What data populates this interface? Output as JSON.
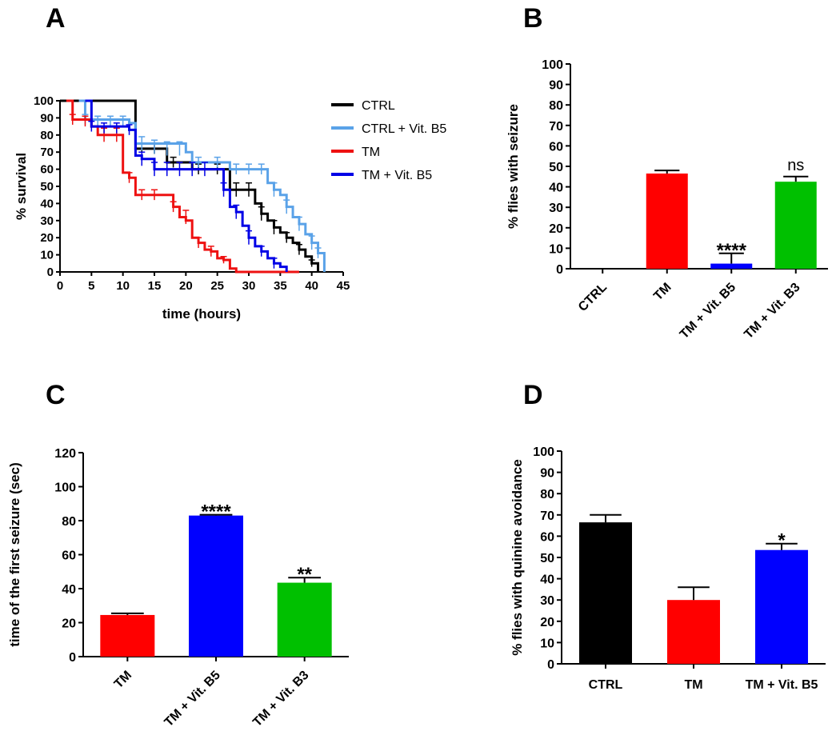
{
  "chart_data": [
    {
      "panel": "A",
      "type": "line",
      "title": "",
      "xlabel": "time (hours)",
      "ylabel": "% survival",
      "xlim": [
        0,
        45
      ],
      "ylim": [
        0,
        100
      ],
      "xticks": [
        0,
        5,
        10,
        15,
        20,
        25,
        30,
        35,
        40,
        45
      ],
      "yticks": [
        0,
        10,
        20,
        30,
        40,
        50,
        60,
        70,
        80,
        90,
        100
      ],
      "grid": false,
      "legend_position": "top-right",
      "series": [
        {
          "name": "CTRL",
          "color": "#000000",
          "points": [
            [
              0,
              100
            ],
            [
              11,
              100
            ],
            [
              12,
              72
            ],
            [
              16,
              72
            ],
            [
              17,
              64
            ],
            [
              20,
              64
            ],
            [
              21,
              60
            ],
            [
              26,
              60
            ],
            [
              27,
              48
            ],
            [
              30,
              48
            ],
            [
              31,
              40
            ],
            [
              32,
              34
            ],
            [
              33,
              30
            ],
            [
              34,
              26
            ],
            [
              35,
              23
            ],
            [
              36,
              20
            ],
            [
              37,
              17
            ],
            [
              38,
              13
            ],
            [
              39,
              9
            ],
            [
              40,
              5
            ],
            [
              41,
              0
            ]
          ],
          "errors": [
            [
              2,
              100,
              0
            ],
            [
              4,
              100,
              0
            ],
            [
              6,
              100,
              0
            ],
            [
              8,
              100,
              0
            ],
            [
              10,
              100,
              0
            ],
            [
              13,
              72,
              3
            ],
            [
              15,
              72,
              3
            ],
            [
              18,
              64,
              3
            ],
            [
              22,
              60,
              3
            ],
            [
              25,
              60,
              3
            ],
            [
              28,
              48,
              4
            ],
            [
              30,
              48,
              4
            ],
            [
              32,
              34,
              4
            ],
            [
              34,
              26,
              4
            ],
            [
              36,
              20,
              3
            ],
            [
              38,
              13,
              3
            ],
            [
              40,
              5,
              2
            ]
          ]
        },
        {
          "name": "CTRL + Vit. B5",
          "color": "#5aa2e8",
          "points": [
            [
              3,
              100
            ],
            [
              4,
              89
            ],
            [
              11,
              87
            ],
            [
              12,
              75
            ],
            [
              20,
              70
            ],
            [
              21,
              64
            ],
            [
              26,
              64
            ],
            [
              27,
              60
            ],
            [
              32,
              60
            ],
            [
              33,
              52
            ],
            [
              34,
              48
            ],
            [
              35,
              45
            ],
            [
              36,
              38
            ],
            [
              37,
              32
            ],
            [
              38,
              28
            ],
            [
              39,
              22
            ],
            [
              40,
              17
            ],
            [
              41,
              11
            ],
            [
              42,
              0
            ]
          ],
          "errors": [
            [
              4,
              89,
              3
            ],
            [
              6,
              88,
              3
            ],
            [
              8,
              88,
              3
            ],
            [
              10,
              88,
              3
            ],
            [
              13,
              75,
              4
            ],
            [
              15,
              73,
              4
            ],
            [
              17,
              72,
              4
            ],
            [
              19,
              72,
              4
            ],
            [
              22,
              64,
              3
            ],
            [
              25,
              64,
              3
            ],
            [
              28,
              60,
              3
            ],
            [
              30,
              60,
              3
            ],
            [
              32,
              60,
              3
            ],
            [
              34,
              48,
              4
            ],
            [
              36,
              38,
              4
            ],
            [
              38,
              28,
              4
            ],
            [
              40,
              17,
              4
            ],
            [
              41,
              11,
              3
            ]
          ]
        },
        {
          "name": "TM",
          "color": "#ee1111",
          "points": [
            [
              1,
              100
            ],
            [
              2,
              89
            ],
            [
              5,
              85
            ],
            [
              6,
              80
            ],
            [
              9,
              80
            ],
            [
              10,
              58
            ],
            [
              11,
              55
            ],
            [
              12,
              45
            ],
            [
              17,
              45
            ],
            [
              18,
              38
            ],
            [
              19,
              32
            ],
            [
              20,
              30
            ],
            [
              21,
              20
            ],
            [
              22,
              17
            ],
            [
              23,
              13
            ],
            [
              24,
              12
            ],
            [
              25,
              8
            ],
            [
              26,
              7
            ],
            [
              27,
              2
            ],
            [
              28,
              0
            ],
            [
              38,
              0
            ]
          ],
          "errors": [
            [
              2,
              89,
              3
            ],
            [
              4,
              88,
              3
            ],
            [
              7,
              80,
              4
            ],
            [
              9,
              80,
              4
            ],
            [
              11,
              55,
              3
            ],
            [
              13,
              45,
              3
            ],
            [
              15,
              45,
              3
            ],
            [
              18,
              38,
              3
            ],
            [
              20,
              32,
              4
            ],
            [
              22,
              17,
              3
            ],
            [
              24,
              12,
              3
            ],
            [
              26,
              7,
              2
            ]
          ]
        },
        {
          "name": "TM + Vit. B5",
          "color": "#0000e6",
          "points": [
            [
              4,
              100
            ],
            [
              5,
              85
            ],
            [
              11,
              83
            ],
            [
              12,
              68
            ],
            [
              13,
              66
            ],
            [
              15,
              60
            ],
            [
              25,
              60
            ],
            [
              26,
              48
            ],
            [
              27,
              38
            ],
            [
              28,
              35
            ],
            [
              29,
              27
            ],
            [
              30,
              20
            ],
            [
              31,
              15
            ],
            [
              32,
              12
            ],
            [
              33,
              8
            ],
            [
              34,
              5
            ],
            [
              35,
              3
            ],
            [
              36,
              0
            ]
          ],
          "errors": [
            [
              5,
              85,
              3
            ],
            [
              7,
              84,
              3
            ],
            [
              9,
              84,
              3
            ],
            [
              11,
              83,
              3
            ],
            [
              13,
              66,
              4
            ],
            [
              15,
              60,
              4
            ],
            [
              17,
              60,
              4
            ],
            [
              19,
              60,
              4
            ],
            [
              21,
              60,
              4
            ],
            [
              23,
              60,
              4
            ],
            [
              26,
              48,
              4
            ],
            [
              28,
              35,
              4
            ],
            [
              30,
              20,
              4
            ],
            [
              32,
              12,
              3
            ],
            [
              34,
              5,
              3
            ]
          ]
        }
      ]
    },
    {
      "panel": "B",
      "type": "bar",
      "title": "",
      "xlabel": "",
      "ylabel": "% flies with seizure",
      "ylim": [
        0,
        100
      ],
      "yticks": [
        0,
        10,
        20,
        30,
        40,
        50,
        60,
        70,
        80,
        90,
        100
      ],
      "categories": [
        "CTRL",
        "TM",
        "TM + Vit. B5",
        "TM + Vit. B3"
      ],
      "values": [
        0,
        46.5,
        2.5,
        42.5
      ],
      "errors": [
        0,
        1.5,
        5,
        2.5
      ],
      "colors": [
        "#000000",
        "#ff0000",
        "#0000ff",
        "#00c000"
      ],
      "annotations": [
        "",
        "",
        "****",
        "ns"
      ]
    },
    {
      "panel": "C",
      "type": "bar",
      "title": "",
      "xlabel": "",
      "ylabel": "time of the first seizure (sec)",
      "ylim": [
        0,
        120
      ],
      "yticks": [
        0,
        20,
        40,
        60,
        80,
        100,
        120
      ],
      "categories": [
        "TM",
        "TM + Vit. B5",
        "TM + Vit. B3"
      ],
      "values": [
        24.5,
        83,
        43.5
      ],
      "errors": [
        1,
        0.5,
        3
      ],
      "colors": [
        "#ff0000",
        "#0000ff",
        "#00c000"
      ],
      "annotations": [
        "",
        "****",
        "**"
      ]
    },
    {
      "panel": "D",
      "type": "bar",
      "title": "",
      "xlabel": "",
      "ylabel": "% flies with quinine avoidance",
      "ylim": [
        0,
        100
      ],
      "yticks": [
        0,
        10,
        20,
        30,
        40,
        50,
        60,
        70,
        80,
        90,
        100
      ],
      "categories": [
        "CTRL",
        "TM",
        "TM + Vit. B5"
      ],
      "values": [
        66.5,
        30,
        53.5
      ],
      "errors": [
        3.5,
        6,
        3
      ],
      "colors": [
        "#000000",
        "#ff0000",
        "#0000ff"
      ],
      "annotations": [
        "",
        "",
        "*"
      ]
    }
  ]
}
